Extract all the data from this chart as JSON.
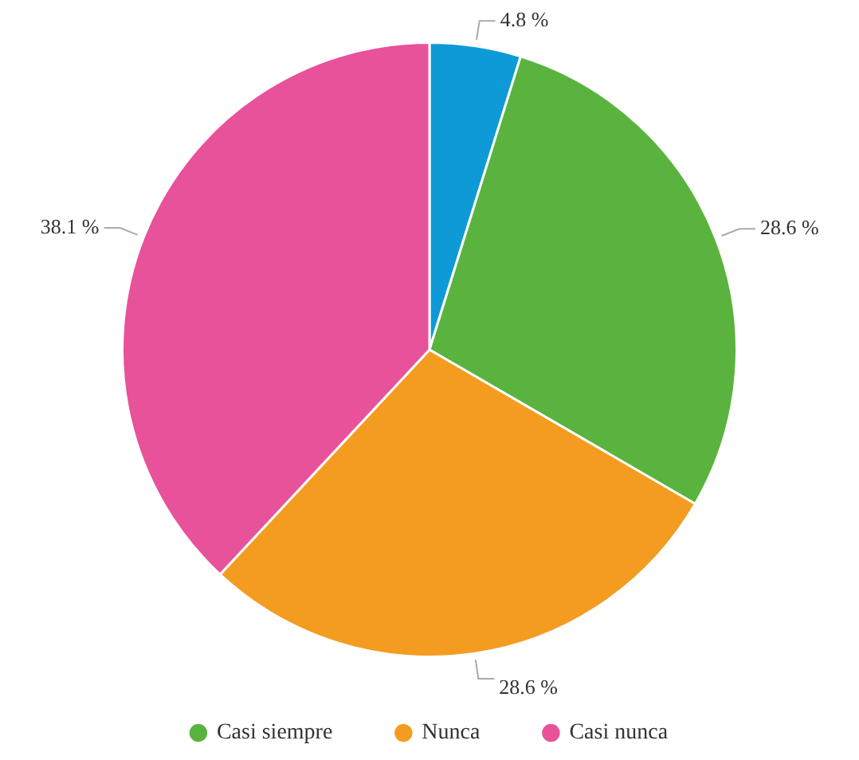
{
  "chart_data": {
    "type": "pie",
    "categories": [
      null,
      "Casi siempre",
      "Nunca",
      "Casi nunca"
    ],
    "values": [
      4.8,
      28.6,
      28.6,
      38.1
    ],
    "colors": [
      "#0e9ad7",
      "#5ab33e",
      "#f49c20",
      "#e8529a"
    ],
    "value_labels": [
      "4.8 %",
      "28.6 %",
      "28.6 %",
      "38.1 %"
    ],
    "legend": "bottom"
  }
}
